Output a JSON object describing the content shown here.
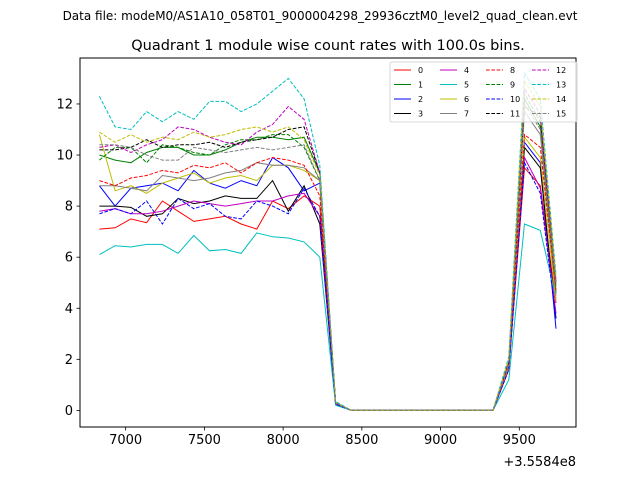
{
  "chart_data": {
    "type": "line",
    "suptitle": "Data file: modeM0/AS1A10_058T01_9000004298_29936cztM0_level2_quad_clean.evt",
    "title": "Quadrant 1 module wise count rates with 100.0s bins.",
    "xlabel": "",
    "ylabel": "",
    "x_offset_label": "+3.5584e8",
    "xlim": [
      6710,
      9860
    ],
    "ylim": [
      -0.65,
      13.8
    ],
    "x_ticks": [
      7000,
      7500,
      8000,
      8500,
      9000,
      9500
    ],
    "x_tick_labels": [
      "7000",
      "7500",
      "8000",
      "8500",
      "9000",
      "9500"
    ],
    "y_ticks": [
      0,
      2,
      4,
      6,
      8,
      10,
      12
    ],
    "y_tick_labels": [
      "0",
      "2",
      "4",
      "6",
      "8",
      "10",
      "12"
    ],
    "x": [
      6833,
      6933,
      7033,
      7133,
      7233,
      7333,
      7433,
      7533,
      7633,
      7733,
      7833,
      7933,
      8033,
      8133,
      8233,
      8333,
      8433,
      8533,
      8633,
      8733,
      8833,
      8933,
      9033,
      9133,
      9233,
      9333,
      9433,
      9533,
      9633,
      9733
    ],
    "legend_position": "upper right",
    "series": [
      {
        "name": "0",
        "color": "#ff0000",
        "dash": "solid",
        "values": [
          7.1,
          7.15,
          7.5,
          7.35,
          8.2,
          7.8,
          7.4,
          7.5,
          7.6,
          7.3,
          7.1,
          8.2,
          7.9,
          8.4,
          8.0,
          0.3,
          0.0,
          0.0,
          0.0,
          0.0,
          0.0,
          0.0,
          0.0,
          0.0,
          0.0,
          0.0,
          1.6,
          9.5,
          8.8,
          4.2
        ]
      },
      {
        "name": "1",
        "color": "#008000",
        "dash": "solid",
        "values": [
          10.0,
          9.8,
          9.7,
          10.1,
          10.3,
          10.3,
          10.0,
          10.0,
          10.2,
          10.5,
          10.7,
          10.7,
          10.6,
          10.7,
          9.3,
          0.3,
          0.0,
          0.0,
          0.0,
          0.0,
          0.0,
          0.0,
          0.0,
          0.0,
          0.0,
          0.0,
          1.9,
          12.2,
          11.1,
          4.6
        ]
      },
      {
        "name": "2",
        "color": "#0000ff",
        "dash": "solid",
        "values": [
          8.8,
          8.0,
          8.7,
          8.8,
          8.9,
          8.6,
          9.4,
          8.9,
          8.7,
          9.0,
          8.8,
          9.9,
          9.5,
          8.6,
          8.9,
          0.3,
          0.0,
          0.0,
          0.0,
          0.0,
          0.0,
          0.0,
          0.0,
          0.0,
          0.0,
          0.0,
          1.8,
          10.5,
          9.7,
          3.2
        ]
      },
      {
        "name": "3",
        "color": "#000000",
        "dash": "solid",
        "values": [
          8.0,
          8.0,
          7.95,
          7.6,
          7.7,
          8.3,
          8.1,
          8.2,
          8.4,
          8.3,
          8.3,
          9.0,
          7.8,
          8.8,
          7.3,
          0.25,
          0.0,
          0.0,
          0.0,
          0.0,
          0.0,
          0.0,
          0.0,
          0.0,
          0.0,
          0.0,
          1.7,
          10.3,
          9.5,
          3.6
        ]
      },
      {
        "name": "4",
        "color": "#bf00bf",
        "dash": "solid",
        "values": [
          7.8,
          7.9,
          7.7,
          7.7,
          7.8,
          8.0,
          8.2,
          8.1,
          8.0,
          8.1,
          8.2,
          8.2,
          8.4,
          8.5,
          7.6,
          0.25,
          0.0,
          0.0,
          0.0,
          0.0,
          0.0,
          0.0,
          0.0,
          0.0,
          0.0,
          0.0,
          1.6,
          9.9,
          8.7,
          3.8
        ]
      },
      {
        "name": "5",
        "color": "#00bfbf",
        "dash": "solid",
        "values": [
          6.1,
          6.45,
          6.4,
          6.5,
          6.5,
          6.15,
          6.85,
          6.25,
          6.3,
          6.15,
          6.95,
          6.8,
          6.75,
          6.6,
          6.0,
          0.2,
          0.0,
          0.0,
          0.0,
          0.0,
          0.0,
          0.0,
          0.0,
          0.0,
          0.0,
          0.0,
          1.2,
          7.3,
          7.05,
          4.4
        ]
      },
      {
        "name": "6",
        "color": "#bfbf00",
        "dash": "solid",
        "values": [
          10.8,
          8.6,
          8.8,
          8.5,
          8.9,
          9.1,
          9.3,
          8.9,
          9.1,
          9.2,
          9.0,
          9.6,
          9.6,
          9.4,
          9.0,
          0.3,
          0.0,
          0.0,
          0.0,
          0.0,
          0.0,
          0.0,
          0.0,
          0.0,
          0.0,
          0.0,
          1.7,
          10.7,
          9.9,
          4.3
        ]
      },
      {
        "name": "7",
        "color": "#808080",
        "dash": "solid",
        "values": [
          8.8,
          8.8,
          8.7,
          8.6,
          9.2,
          9.1,
          9.0,
          9.1,
          9.3,
          9.4,
          9.7,
          9.6,
          9.6,
          9.5,
          9.0,
          0.3,
          0.0,
          0.0,
          0.0,
          0.0,
          0.0,
          0.0,
          0.0,
          0.0,
          0.0,
          0.0,
          1.8,
          11.7,
          10.8,
          4.5
        ]
      },
      {
        "name": "8",
        "color": "#ff0000",
        "dash": "dashed",
        "values": [
          9.0,
          8.8,
          9.1,
          9.2,
          9.4,
          9.3,
          9.6,
          9.5,
          9.7,
          9.3,
          9.7,
          9.9,
          9.8,
          9.6,
          8.4,
          0.3,
          0.0,
          0.0,
          0.0,
          0.0,
          0.0,
          0.0,
          0.0,
          0.0,
          0.0,
          0.0,
          1.8,
          10.8,
          10.3,
          4.7
        ]
      },
      {
        "name": "9",
        "color": "#008000",
        "dash": "dashed",
        "values": [
          9.8,
          10.3,
          10.3,
          9.7,
          10.4,
          10.3,
          10.1,
          10.0,
          10.4,
          10.6,
          10.6,
          10.8,
          10.8,
          10.3,
          9.0,
          0.3,
          0.0,
          0.0,
          0.0,
          0.0,
          0.0,
          0.0,
          0.0,
          0.0,
          0.0,
          0.0,
          1.9,
          12.4,
          11.3,
          4.8
        ]
      },
      {
        "name": "10",
        "color": "#0000ff",
        "dash": "dashed",
        "values": [
          7.7,
          7.9,
          7.7,
          8.2,
          7.3,
          8.3,
          7.9,
          8.1,
          7.6,
          7.5,
          8.2,
          8.0,
          7.7,
          8.7,
          7.6,
          0.25,
          0.0,
          0.0,
          0.0,
          0.0,
          0.0,
          0.0,
          0.0,
          0.0,
          0.0,
          0.0,
          1.6,
          9.7,
          8.5,
          3.6
        ]
      },
      {
        "name": "11",
        "color": "#000000",
        "dash": "dashed",
        "values": [
          10.2,
          10.2,
          10.3,
          10.6,
          10.3,
          10.4,
          10.4,
          10.5,
          10.3,
          10.5,
          10.6,
          10.7,
          11.0,
          11.1,
          9.3,
          0.3,
          0.0,
          0.0,
          0.0,
          0.0,
          0.0,
          0.0,
          0.0,
          0.0,
          0.0,
          0.0,
          1.9,
          11.9,
          11.5,
          5.0
        ]
      },
      {
        "name": "12",
        "color": "#bf00bf",
        "dash": "dashed",
        "values": [
          10.3,
          10.4,
          10.1,
          10.4,
          10.6,
          11.1,
          11.0,
          10.7,
          10.5,
          10.4,
          10.9,
          11.2,
          11.9,
          11.4,
          9.3,
          0.3,
          0.0,
          0.0,
          0.0,
          0.0,
          0.0,
          0.0,
          0.0,
          0.0,
          0.0,
          0.0,
          1.9,
          12.6,
          11.6,
          5.1
        ]
      },
      {
        "name": "13",
        "color": "#00bfbf",
        "dash": "dashed",
        "values": [
          12.3,
          11.1,
          11.0,
          11.7,
          11.3,
          11.7,
          11.4,
          12.1,
          12.1,
          11.7,
          12.0,
          12.5,
          13.0,
          12.2,
          9.6,
          0.35,
          0.0,
          0.0,
          0.0,
          0.0,
          0.0,
          0.0,
          0.0,
          0.0,
          0.0,
          0.0,
          2.1,
          13.2,
          12.2,
          5.3
        ]
      },
      {
        "name": "14",
        "color": "#bfbf00",
        "dash": "dashed",
        "values": [
          10.9,
          10.5,
          10.8,
          10.5,
          10.7,
          10.6,
          10.9,
          10.7,
          10.8,
          11.0,
          11.1,
          10.9,
          11.1,
          10.6,
          9.2,
          0.3,
          0.0,
          0.0,
          0.0,
          0.0,
          0.0,
          0.0,
          0.0,
          0.0,
          0.0,
          0.0,
          2.0,
          12.9,
          11.9,
          5.2
        ]
      },
      {
        "name": "15",
        "color": "#808080",
        "dash": "dashed",
        "values": [
          10.4,
          10.4,
          10.3,
          10.0,
          9.8,
          9.8,
          10.3,
          10.2,
          10.1,
          10.2,
          10.3,
          10.2,
          10.3,
          10.4,
          9.0,
          0.3,
          0.0,
          0.0,
          0.0,
          0.0,
          0.0,
          0.0,
          0.0,
          0.0,
          0.0,
          0.0,
          1.8,
          12.0,
          11.0,
          4.9
        ]
      }
    ]
  }
}
